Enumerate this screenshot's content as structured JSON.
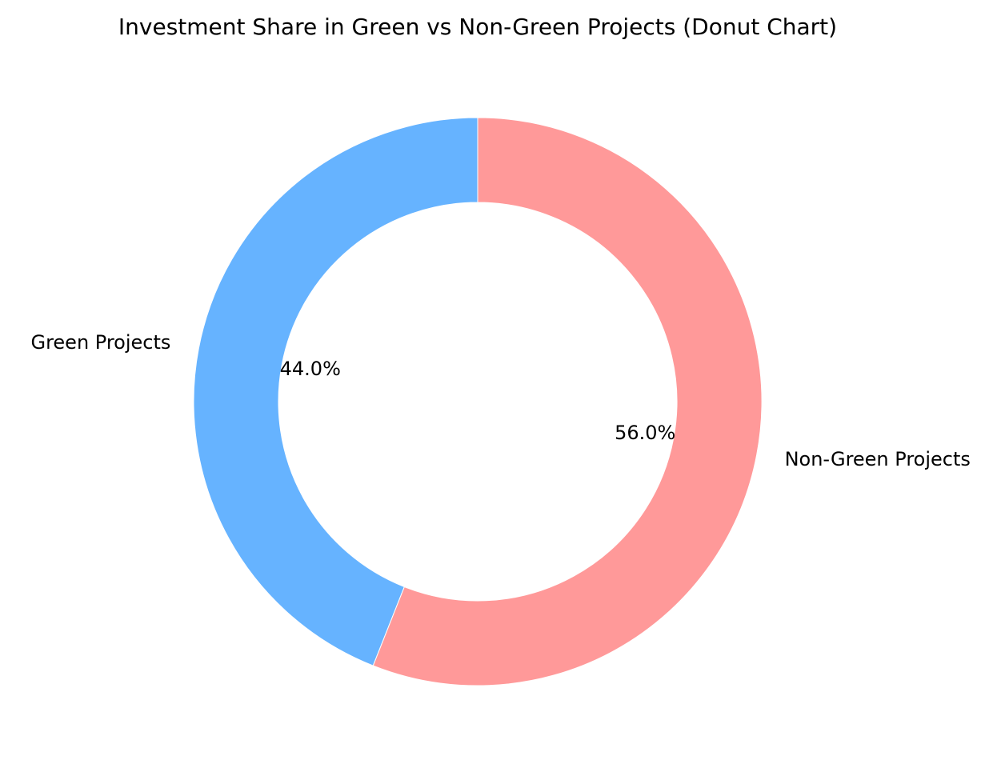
{
  "chart_data": {
    "type": "pie",
    "variant": "donut",
    "title": "Investment Share in Green vs Non-Green Projects (Donut Chart)",
    "slices": [
      {
        "label": "Green Projects",
        "value": 44.0,
        "percent_label": "44.0%",
        "color": "#66b3ff"
      },
      {
        "label": "Non-Green Projects",
        "value": 56.0,
        "percent_label": "56.0%",
        "color": "#ff9999"
      }
    ],
    "start_angle_deg": 90,
    "direction": "counterclockwise",
    "legend": "none"
  }
}
